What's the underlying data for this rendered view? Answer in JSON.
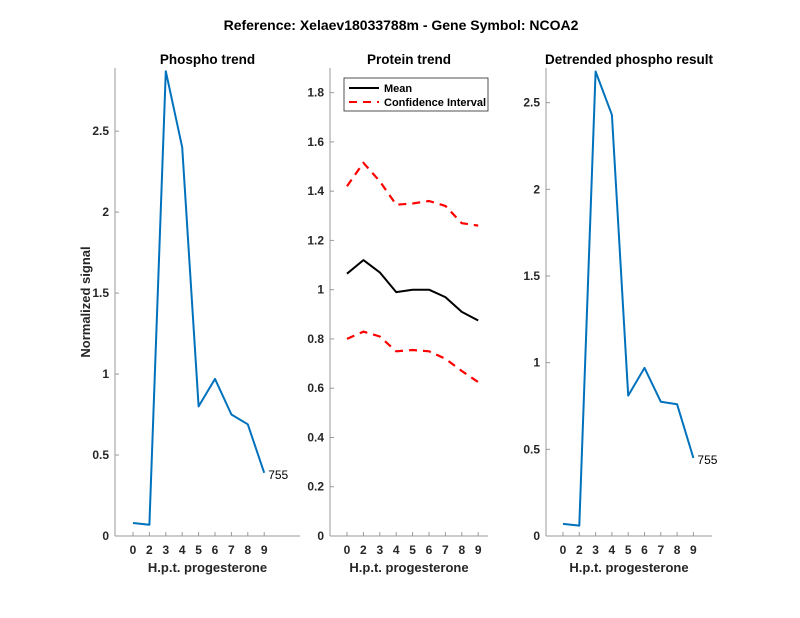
{
  "suptitle": "Reference:  Xelaev18033788m - Gene Symbol:  NCOA2",
  "colors": {
    "phospho": "#0072BD",
    "mean": "#000000",
    "ci": "#FF0000",
    "axis": "#262626"
  },
  "chart_data": [
    {
      "type": "line",
      "title": "Phospho trend",
      "xlabel": "H.p.t. progesterone",
      "ylabel": "Normalized signal",
      "x": [
        "0",
        "2",
        "3",
        "4",
        "5",
        "6",
        "7",
        "8",
        "9"
      ],
      "ylim": [
        0,
        2.89
      ],
      "yticks": [
        0,
        0.5,
        1,
        1.5,
        2,
        2.5
      ],
      "ytick_labels": [
        "0",
        "0.5",
        "1",
        "1.5",
        "2",
        "2.5"
      ],
      "series": [
        {
          "name": "phospho",
          "color": "#0072BD",
          "style": "solid",
          "values": [
            0.08,
            0.07,
            2.87,
            2.4,
            0.8,
            0.97,
            0.75,
            0.69,
            0.39
          ]
        }
      ],
      "annotation": {
        "text": "755",
        "at_index": 8
      }
    },
    {
      "type": "line",
      "title": "Protein trend",
      "xlabel": "H.p.t. progesterone",
      "ylabel": "",
      "x": [
        "0",
        "2",
        "3",
        "4",
        "5",
        "6",
        "7",
        "8",
        "9"
      ],
      "ylim": [
        0,
        1.9
      ],
      "yticks": [
        0,
        0.2,
        0.4,
        0.6,
        0.8,
        1,
        1.2,
        1.4,
        1.6,
        1.8
      ],
      "ytick_labels": [
        "0",
        "0.2",
        "0.4",
        "0.6",
        "0.8",
        "1",
        "1.2",
        "1.4",
        "1.6",
        "1.8"
      ],
      "legend": {
        "placement": "top-left",
        "entries": [
          "Mean",
          "Confidence Interval"
        ]
      },
      "series": [
        {
          "name": "Mean",
          "color": "#000000",
          "style": "solid",
          "values": [
            1.065,
            1.12,
            1.07,
            0.99,
            1.0,
            1.0,
            0.97,
            0.91,
            0.875
          ]
        },
        {
          "name": "Confidence Interval",
          "color": "#FF0000",
          "style": "dashed",
          "values": [
            1.42,
            1.515,
            1.44,
            1.345,
            1.35,
            1.36,
            1.34,
            1.27,
            1.26
          ]
        },
        {
          "name": "Confidence Interval (lower)",
          "color": "#FF0000",
          "style": "dashed",
          "values": [
            0.8,
            0.83,
            0.81,
            0.75,
            0.755,
            0.75,
            0.72,
            0.67,
            0.625
          ]
        }
      ]
    },
    {
      "type": "line",
      "title": "Detrended phospho result",
      "xlabel": "H.p.t. progesterone",
      "ylabel": "",
      "x": [
        "0",
        "2",
        "3",
        "4",
        "5",
        "6",
        "7",
        "8",
        "9"
      ],
      "ylim": [
        0,
        2.7
      ],
      "yticks": [
        0,
        0.5,
        1,
        1.5,
        2,
        2.5
      ],
      "ytick_labels": [
        "0",
        "0.5",
        "1",
        "1.5",
        "2",
        "2.5"
      ],
      "series": [
        {
          "name": "detrended",
          "color": "#0072BD",
          "style": "solid",
          "values": [
            0.07,
            0.06,
            2.68,
            2.43,
            0.81,
            0.97,
            0.775,
            0.76,
            0.45
          ]
        }
      ],
      "annotation": {
        "text": "755",
        "at_index": 8
      }
    }
  ]
}
